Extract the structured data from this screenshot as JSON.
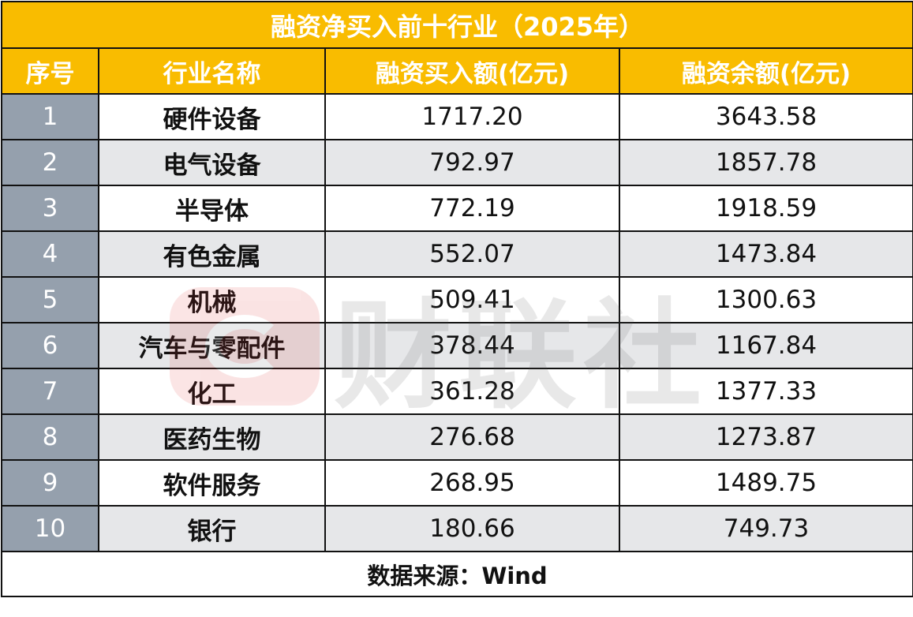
{
  "title": "融资净买入前十行业（2025年）",
  "headers": [
    "序号",
    "行业名称",
    "融资买入额(亿元)",
    "融资余额(亿元)"
  ],
  "rows": [
    {
      "idx": "1",
      "name": "硬件设备",
      "buy": "1717.20",
      "balance": "3643.58"
    },
    {
      "idx": "2",
      "name": "电气设备",
      "buy": "792.97",
      "balance": "1857.78"
    },
    {
      "idx": "3",
      "name": "半导体",
      "buy": "772.19",
      "balance": "1918.59"
    },
    {
      "idx": "4",
      "name": "有色金属",
      "buy": "552.07",
      "balance": "1473.84"
    },
    {
      "idx": "5",
      "name": "机械",
      "buy": "509.41",
      "balance": "1300.63"
    },
    {
      "idx": "6",
      "name": "汽车与零配件",
      "buy": "378.44",
      "balance": "1167.84"
    },
    {
      "idx": "7",
      "name": "化工",
      "buy": "361.28",
      "balance": "1377.33"
    },
    {
      "idx": "8",
      "name": "医药生物",
      "buy": "276.68",
      "balance": "1273.87"
    },
    {
      "idx": "9",
      "name": "软件服务",
      "buy": "268.95",
      "balance": "1489.75"
    },
    {
      "idx": "10",
      "name": "银行",
      "buy": "180.66",
      "balance": "749.73"
    }
  ],
  "footer": "数据来源：Wind",
  "watermark": "财联社",
  "colors": {
    "header": "#F9BC00",
    "index_cell": "#95A0AD",
    "alt_row": "#E6E7E9"
  }
}
